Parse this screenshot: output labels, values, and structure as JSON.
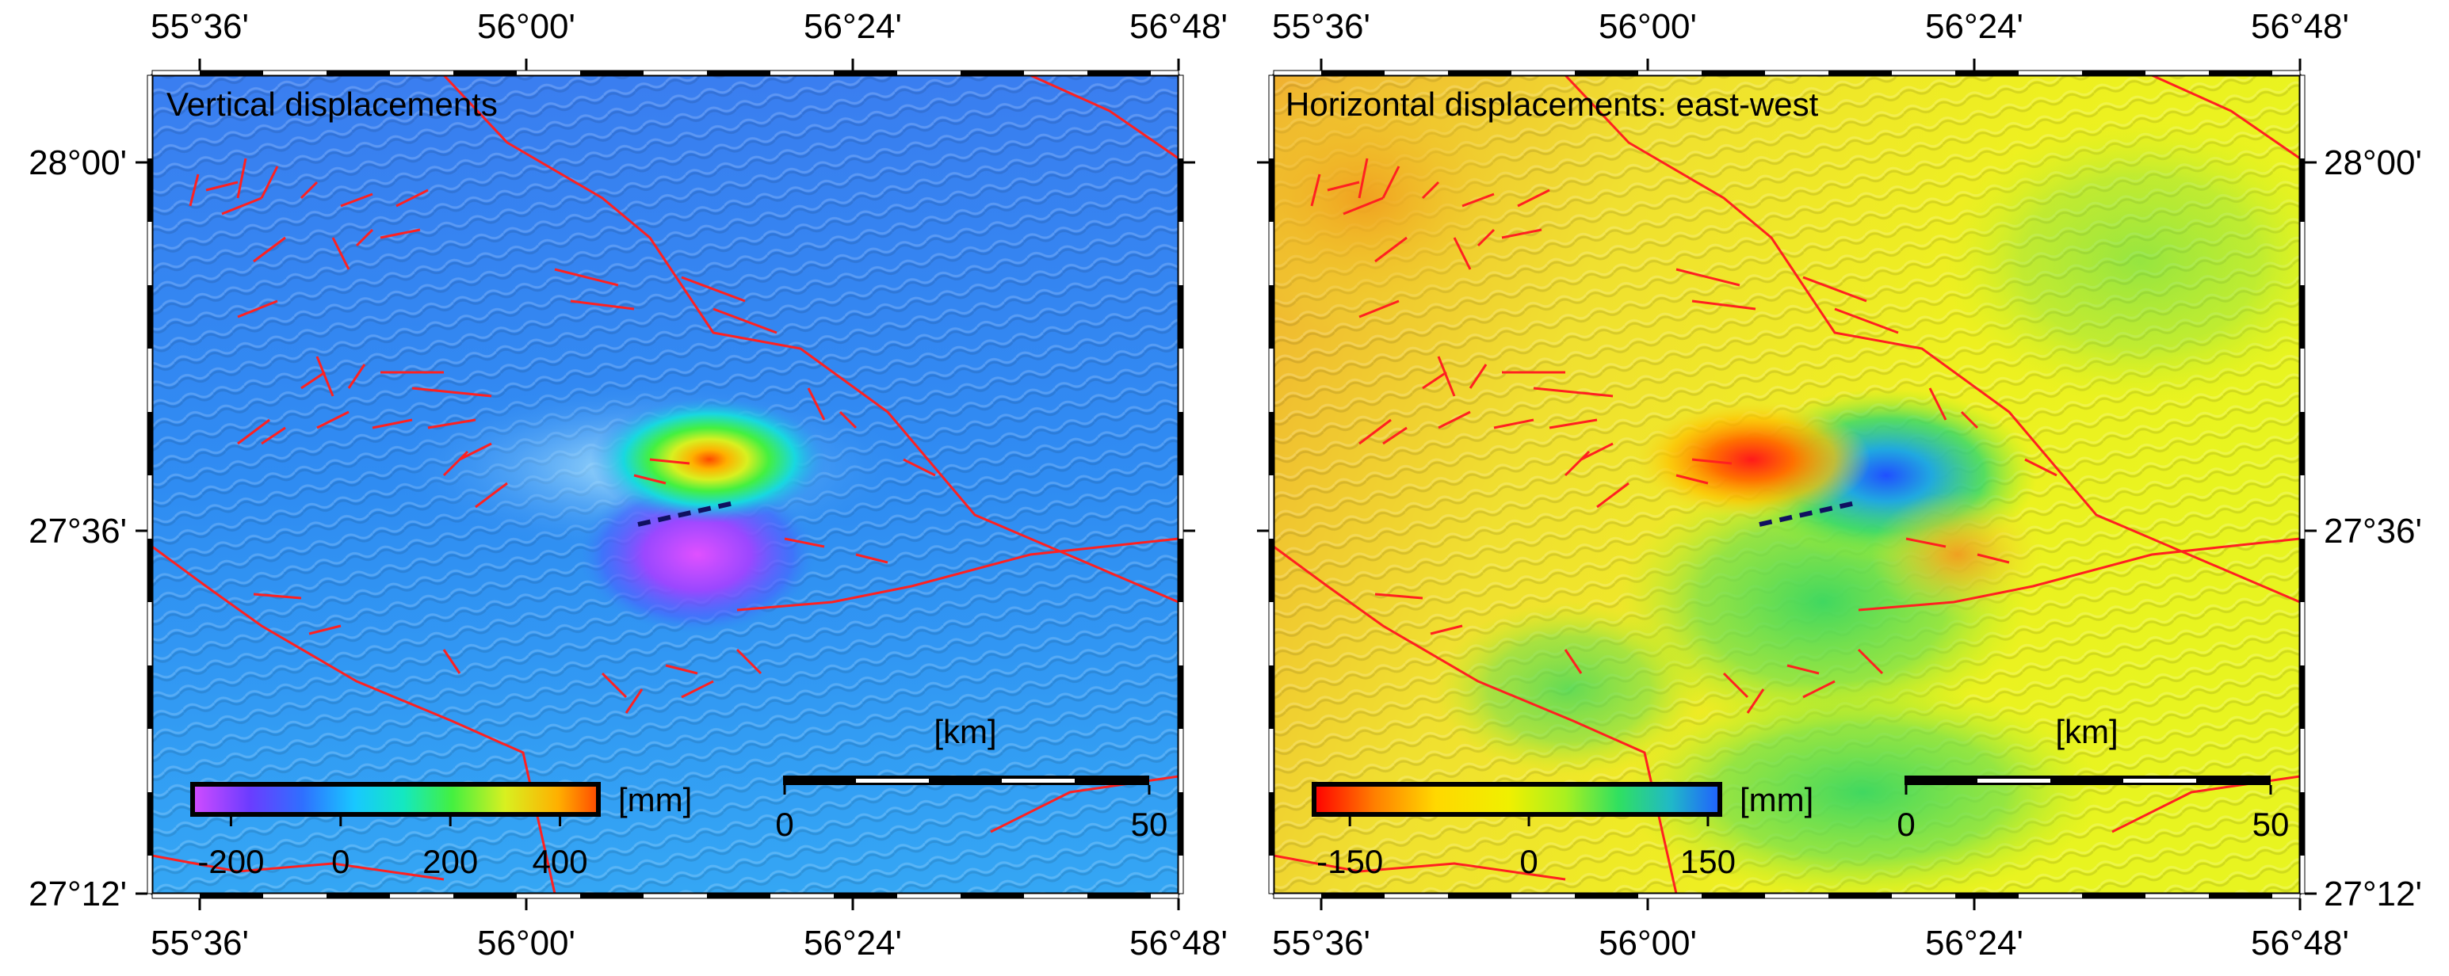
{
  "figure": {
    "panels": [
      {
        "id": "vertical",
        "title": "Vertical displacements",
        "x_ticks": [
          "55°36'",
          "56°00'",
          "56°24'",
          "56°48'"
        ],
        "y_ticks": [
          "28°00'",
          "27°36'",
          "27°12'"
        ],
        "colorbar": {
          "unit": "[mm]",
          "ticks": [
            "-200",
            "0",
            "200",
            "400"
          ],
          "tick_values": [
            -200,
            0,
            200,
            400
          ],
          "range": [
            -270,
            470
          ],
          "colors": [
            "#d24cff",
            "#6b3cff",
            "#2f6fff",
            "#18c8ff",
            "#14e8c0",
            "#44f040",
            "#d8f020",
            "#ffb000",
            "#ff4a00"
          ]
        },
        "scale_bar": {
          "unit": "[km]",
          "labels": [
            "0",
            "50"
          ]
        }
      },
      {
        "id": "east-west",
        "title": "Horizontal displacements: east-west",
        "x_ticks": [
          "55°36'",
          "56°00'",
          "56°24'",
          "56°48'"
        ],
        "y_ticks": [
          "28°00'",
          "27°36'",
          "27°12'"
        ],
        "colorbar": {
          "unit": "[mm]",
          "ticks": [
            "-150",
            "0",
            "150"
          ],
          "tick_values": [
            -150,
            0,
            150
          ],
          "range": [
            -180,
            160
          ],
          "colors": [
            "#ff0000",
            "#ff8000",
            "#ffd800",
            "#f0f000",
            "#a8f020",
            "#30e060",
            "#20b8c8",
            "#2060ff"
          ]
        },
        "scale_bar": {
          "unit": "[km]",
          "labels": [
            "0",
            "50"
          ]
        }
      }
    ],
    "colors": {
      "faults": "#ff2020",
      "rupture_trace": "#101060",
      "vertical_background": "#2f88f0",
      "eastwest_background": "#f0f020"
    }
  }
}
